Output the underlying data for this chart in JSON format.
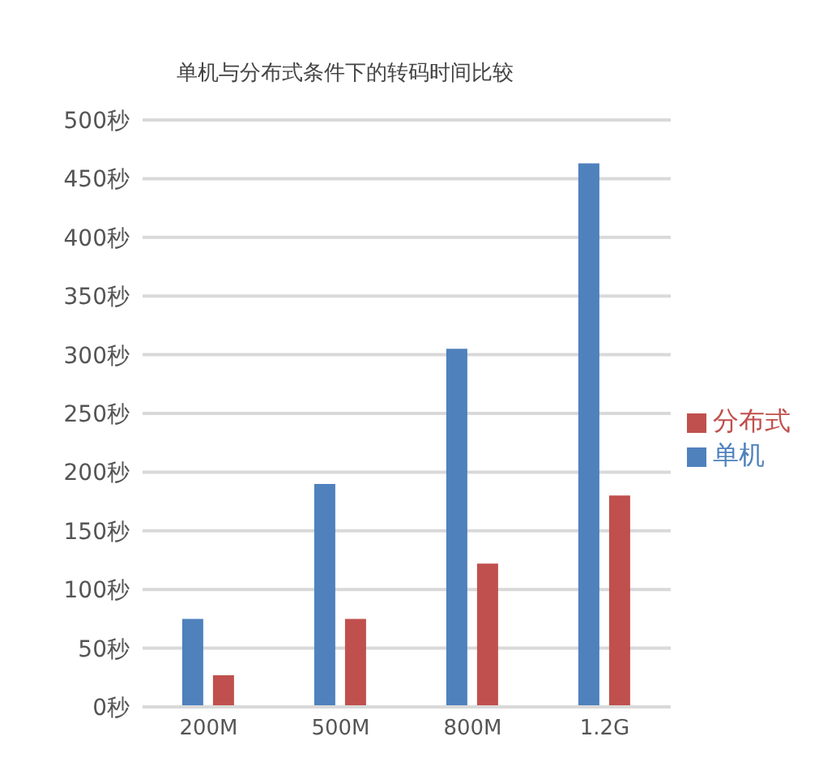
{
  "chart_data": {
    "type": "bar",
    "title": "单机与分布式条件下的转码时间比较",
    "categories": [
      "200M",
      "500M",
      "800M",
      "1.2G"
    ],
    "series": [
      {
        "name": "单机",
        "color": "#4f81bd",
        "values": [
          75,
          190,
          305,
          463
        ]
      },
      {
        "name": "分布式",
        "color": "#c0504d",
        "values": [
          27,
          75,
          122,
          180
        ]
      }
    ],
    "ylim": [
      0,
      500
    ],
    "yticks": [
      {
        "value": 0,
        "label": "0秒"
      },
      {
        "value": 50,
        "label": "50秒"
      },
      {
        "value": 100,
        "label": "100秒"
      },
      {
        "value": 150,
        "label": "150秒"
      },
      {
        "value": 200,
        "label": "200秒"
      },
      {
        "value": 250,
        "label": "250秒"
      },
      {
        "value": 300,
        "label": "300秒"
      },
      {
        "value": 350,
        "label": "350秒"
      },
      {
        "value": 400,
        "label": "400秒"
      },
      {
        "value": 450,
        "label": "450秒"
      },
      {
        "value": 500,
        "label": "500秒"
      }
    ],
    "grid": "y",
    "legend": "right"
  }
}
